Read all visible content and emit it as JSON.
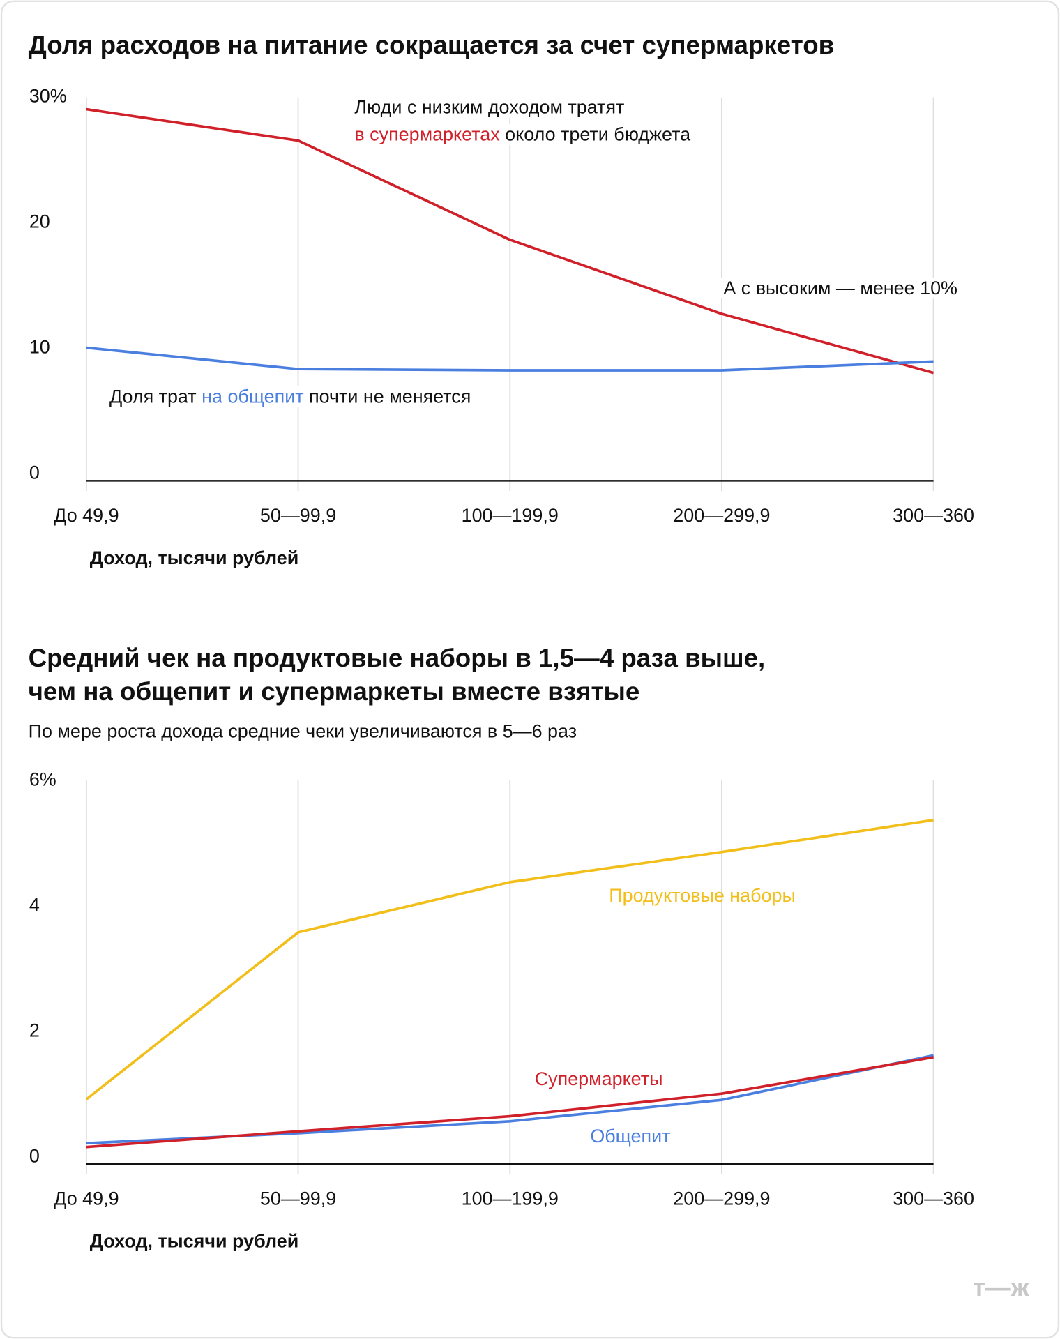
{
  "chart_data": [
    {
      "type": "line",
      "title": [
        "Доля расходов на питание сокращается за счет супермаркетов"
      ],
      "categories": [
        "До 49,9",
        "50—99,9",
        "100—199,9",
        "200—299,9",
        "300—360"
      ],
      "x_label": "Доход, тысячи рублей",
      "series": [
        {
          "color": "#d0202a",
          "values": [
            29.6,
            27.1,
            19.2,
            13.3,
            8.6
          ]
        },
        {
          "color": "#4a7fe0",
          "values": [
            10.6,
            8.9,
            8.8,
            8.8,
            9.5
          ]
        }
      ],
      "ylim": [
        0,
        30
      ],
      "yticks": [
        0,
        10,
        20,
        {
          "value": 30,
          "label": "30%"
        }
      ],
      "grid": true,
      "annotations": [
        [
          {
            "text": "Люди с низким доходом тратят"
          }
        ],
        [
          {
            "text": "в супермаркетах",
            "color": "#d0202a"
          },
          {
            "text": " около трети бюджета"
          }
        ],
        [
          {
            "text": "А с высоким — менее 10%"
          }
        ],
        [
          {
            "text": "Доля трат "
          },
          {
            "text": "на общепит",
            "color": "#4a7fe0"
          },
          {
            "text": " почти не меняется"
          }
        ]
      ]
    },
    {
      "type": "line",
      "title": [
        "Средний чек на продуктовые наборы в 1,5—4 раза выше,",
        "чем на общепит и супермаркеты вместе взятые"
      ],
      "subtitle": "По мере роста дохода средние чеки увеличиваются в 5—6 раз",
      "categories": [
        "До 49,9",
        "50—99,9",
        "100—199,9",
        "200—299,9",
        "300—360"
      ],
      "x_label": "Доход, тысячи рублей",
      "series": [
        {
          "name": "Продуктовые наборы",
          "color": "#f2be1a",
          "values": [
            1.03,
            3.69,
            4.49,
            4.97,
            5.48
          ]
        },
        {
          "name": "Общепит",
          "color": "#4a7fe0",
          "values": [
            0.33,
            0.49,
            0.68,
            1.02,
            1.73
          ]
        },
        {
          "name": "Супермаркеты",
          "color": "#d0202a",
          "values": [
            0.27,
            0.52,
            0.76,
            1.12,
            1.7
          ]
        }
      ],
      "ylim": [
        0,
        6
      ],
      "yticks": [
        0,
        2,
        4,
        {
          "value": 6,
          "label": "6%"
        }
      ],
      "grid": true
    }
  ],
  "logo": "т—ж"
}
